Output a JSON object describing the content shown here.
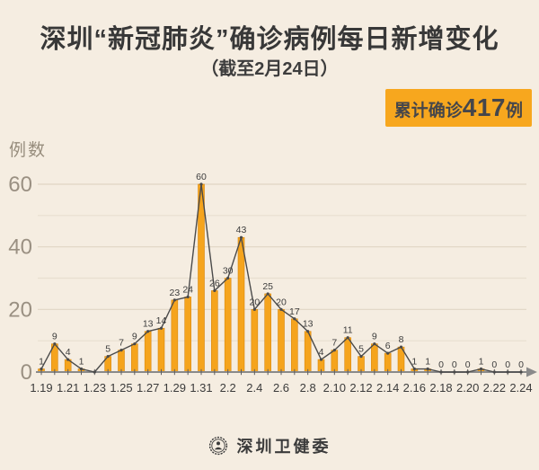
{
  "page": {
    "background": "#F5EDE1"
  },
  "header": {
    "title": "深圳“新冠肺炎”确诊病例每日新增变化",
    "subtitle": "（截至2月24日）",
    "badge": {
      "prefix": "累计确诊",
      "number": "417",
      "suffix": "例"
    }
  },
  "colors": {
    "badge_bg": "#F7A71E",
    "bar_fill": "#F5A41D",
    "bar_edge": "#D8880F",
    "line": "#4A4A4A",
    "marker": "#4A4A4A",
    "axis": "#8A8A8A",
    "grid_major": "#E0D5C4",
    "grid_minor": "#E8DFD0",
    "value_label": "#3D3D3D",
    "x_label": "#3B3B3B",
    "y_label": "#9A9082"
  },
  "chart_data": {
    "type": "bar",
    "line_overlay": true,
    "title": "深圳“新冠肺炎”确诊病例每日新增变化（截至2月24日）",
    "xlabel": "",
    "ylabel": "例数",
    "ylim": [
      0,
      60
    ],
    "yticks": [
      0,
      20,
      40,
      60
    ],
    "grid_step": 10,
    "xtick_every": 2,
    "categories": [
      "1.19",
      "1.20",
      "1.21",
      "1.22",
      "1.23",
      "1.24",
      "1.25",
      "1.26",
      "1.27",
      "1.28",
      "1.29",
      "1.30",
      "1.31",
      "2.1",
      "2.2",
      "2.3",
      "2.4",
      "2.5",
      "2.6",
      "2.7",
      "2.8",
      "2.9",
      "2.10",
      "2.11",
      "2.12",
      "2.13",
      "2.14",
      "2.15",
      "2.16",
      "2.17",
      "2.18",
      "2.19",
      "2.20",
      "2.21",
      "2.22",
      "2.23",
      "2.24"
    ],
    "values": [
      1,
      9,
      4,
      1,
      0,
      5,
      7,
      9,
      13,
      14,
      23,
      24,
      60,
      26,
      30,
      43,
      20,
      25,
      20,
      17,
      13,
      4,
      7,
      11,
      5,
      9,
      6,
      8,
      1,
      1,
      0,
      0,
      0,
      1,
      0,
      0,
      0
    ],
    "x_tick_labels": [
      "1.19",
      "1.21",
      "1.23",
      "1.25",
      "1.27",
      "1.29",
      "1.31",
      "2.2",
      "2.4",
      "2.6",
      "2.8",
      "2.10",
      "2.12",
      "2.14",
      "2.16",
      "2.18",
      "2.20",
      "2.22",
      "2.24"
    ],
    "unlabeled_indices": [
      4
    ],
    "cumulative_total": "累计确诊417例"
  },
  "footer": {
    "org_name": "深圳卫健委"
  }
}
